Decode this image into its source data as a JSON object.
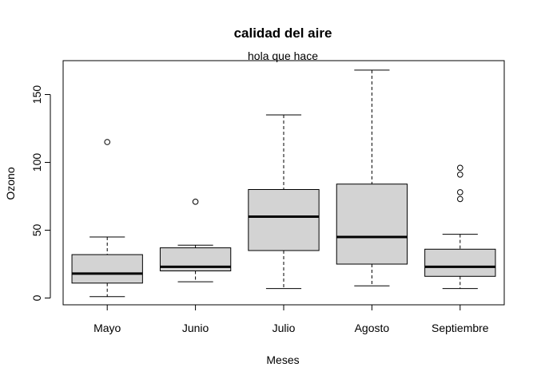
{
  "chart_data": {
    "type": "boxplot",
    "title": "calidad del aire",
    "subtitle": "hola que hace",
    "xlabel": "Meses",
    "ylabel": "Ozono",
    "ylim": [
      -5,
      175
    ],
    "yticks": [
      0,
      50,
      100,
      150
    ],
    "box_color": "#d3d3d3",
    "categories": [
      "Mayo",
      "Junio",
      "Julio",
      "Agosto",
      "Septiembre"
    ],
    "boxes": [
      {
        "name": "Mayo",
        "min": 1,
        "q1": 11,
        "median": 18,
        "q3": 32,
        "max": 45,
        "outliers": [
          115
        ]
      },
      {
        "name": "Junio",
        "min": 12,
        "q1": 20,
        "median": 23,
        "q3": 37,
        "max": 39,
        "outliers": [
          71
        ]
      },
      {
        "name": "Julio",
        "min": 7,
        "q1": 35,
        "median": 60,
        "q3": 80,
        "max": 135,
        "outliers": []
      },
      {
        "name": "Agosto",
        "min": 9,
        "q1": 25,
        "median": 45,
        "q3": 84,
        "max": 168,
        "outliers": []
      },
      {
        "name": "Septiembre",
        "min": 7,
        "q1": 16,
        "median": 23,
        "q3": 36,
        "max": 47,
        "outliers": [
          73,
          78,
          91,
          96
        ]
      }
    ]
  }
}
